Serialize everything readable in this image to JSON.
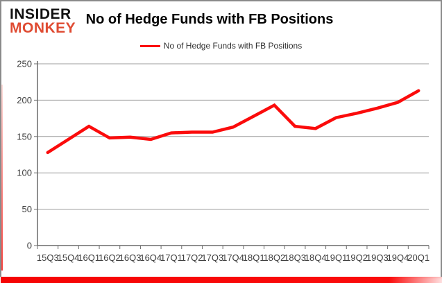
{
  "logo": {
    "line1": "INSIDER",
    "line2": "MONKEY"
  },
  "header": {
    "title": "No of Hedge Funds with FB Positions"
  },
  "legend": {
    "label": "No of Hedge Funds with FB Positions",
    "swatch_icon": "red-line-swatch"
  },
  "colors": {
    "series": "#fb0b0b",
    "logo_red": "#df4b32",
    "gridline": "#9c9c9c",
    "axis": "#6b6b6b",
    "tick_label": "#3d3d3d",
    "frame_border": "#8a8a8a",
    "bottom_bar": "#f50404"
  },
  "chart_data": {
    "type": "line",
    "title": "No of Hedge Funds with FB Positions",
    "categories": [
      "15Q3",
      "15Q4",
      "16Q1",
      "16Q2",
      "16Q3",
      "16Q4",
      "17Q1",
      "17Q2",
      "17Q3",
      "17Q4",
      "18Q1",
      "18Q2",
      "18Q3",
      "18Q4",
      "19Q1",
      "19Q2",
      "19Q3",
      "19Q4",
      "20Q1"
    ],
    "series": [
      {
        "name": "No of Hedge Funds with FB Positions",
        "color": "#fb0b0b",
        "values": [
          128,
          146,
          164,
          148,
          149,
          146,
          155,
          156,
          156,
          163,
          178,
          193,
          164,
          161,
          176,
          182,
          189,
          197,
          213
        ]
      }
    ],
    "xlabel": "",
    "ylabel": "",
    "ylim": [
      0,
      250
    ],
    "ytick_step": 50,
    "ytick_labels": [
      "0",
      "50",
      "100",
      "150",
      "200",
      "250"
    ],
    "grid": true,
    "legend_position": "top-center"
  }
}
